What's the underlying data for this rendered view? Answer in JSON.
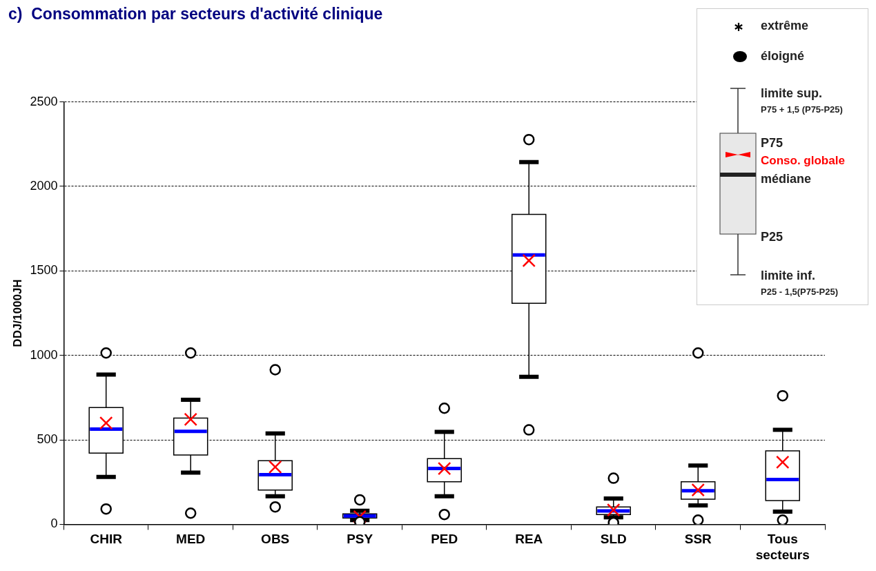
{
  "chart_data": {
    "type": "box",
    "title": "c)  Consommation par secteurs d'activité clinique",
    "ylabel": "DDJ/1000JH",
    "categories": [
      "CHIR",
      "MED",
      "OBS",
      "PSY",
      "PED",
      "REA",
      "SLD",
      "SSR",
      "Tous secteurs"
    ],
    "boxes": [
      {
        "low": 281,
        "q1": 422,
        "median": 563,
        "q3": 691,
        "high": 886,
        "mean": 600,
        "outliers": [
          1014,
          91
        ]
      },
      {
        "low": 306,
        "q1": 410,
        "median": 550,
        "q3": 629,
        "high": 737,
        "mean": 621,
        "outliers": [
          1014,
          66
        ]
      },
      {
        "low": 166,
        "q1": 203,
        "median": 294,
        "q3": 377,
        "high": 538,
        "mean": 339,
        "outliers": [
          915,
          103
        ]
      },
      {
        "low": 25,
        "q1": 37,
        "median": 50,
        "q3": 62,
        "high": 80,
        "mean": 45,
        "outliers": [
          145,
          15
        ]
      },
      {
        "low": 166,
        "q1": 252,
        "median": 331,
        "q3": 389,
        "high": 547,
        "mean": 330,
        "outliers": [
          687,
          58
        ]
      },
      {
        "low": 873,
        "q1": 1308,
        "median": 1594,
        "q3": 1834,
        "high": 2144,
        "mean": 1561,
        "outliers": [
          2277,
          559
        ]
      },
      {
        "low": 41,
        "q1": 58,
        "median": 79,
        "q3": 103,
        "high": 153,
        "mean": 85,
        "outliers": [
          273,
          10
        ]
      },
      {
        "low": 112,
        "q1": 149,
        "median": 199,
        "q3": 252,
        "high": 348,
        "mean": 203,
        "outliers": [
          1014,
          25
        ]
      },
      {
        "low": 75,
        "q1": 141,
        "median": 265,
        "q3": 435,
        "high": 559,
        "mean": 368,
        "outliers": [
          761,
          25
        ]
      }
    ],
    "ylim": [
      0,
      2500
    ],
    "yticks": [
      0,
      500,
      1000,
      1500,
      2000,
      2500
    ],
    "grid": "y",
    "annotations": [
      "extrême",
      "éloigné",
      "limite sup.",
      "P75 + 1,5 (P75-P25)",
      "P75",
      "Conso. globale",
      "médiane",
      "P25",
      "limite inf.",
      "P25 - 1,5(P75-P25)"
    ]
  }
}
